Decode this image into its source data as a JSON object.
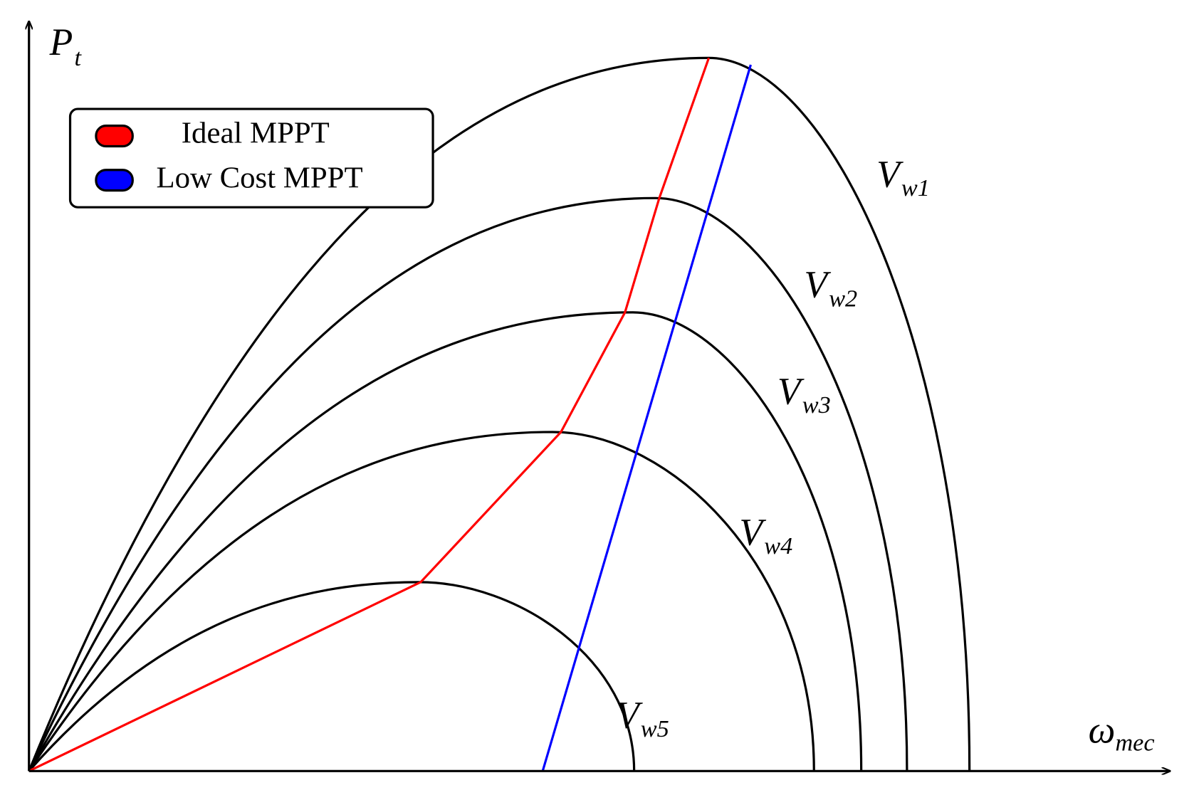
{
  "axes": {
    "y_label": {
      "main": "P",
      "sub": "t"
    },
    "x_label": {
      "main": "ω",
      "sub": "mec"
    }
  },
  "legend": [
    {
      "label": "Ideal MPPT"
    },
    {
      "label": "Low Cost MPPT"
    }
  ],
  "curves": [
    {
      "main": "V",
      "sub": "w1"
    },
    {
      "main": "V",
      "sub": "w2"
    },
    {
      "main": "V",
      "sub": "w3"
    },
    {
      "main": "V",
      "sub": "w4"
    },
    {
      "main": "V",
      "sub": "w5"
    }
  ]
}
